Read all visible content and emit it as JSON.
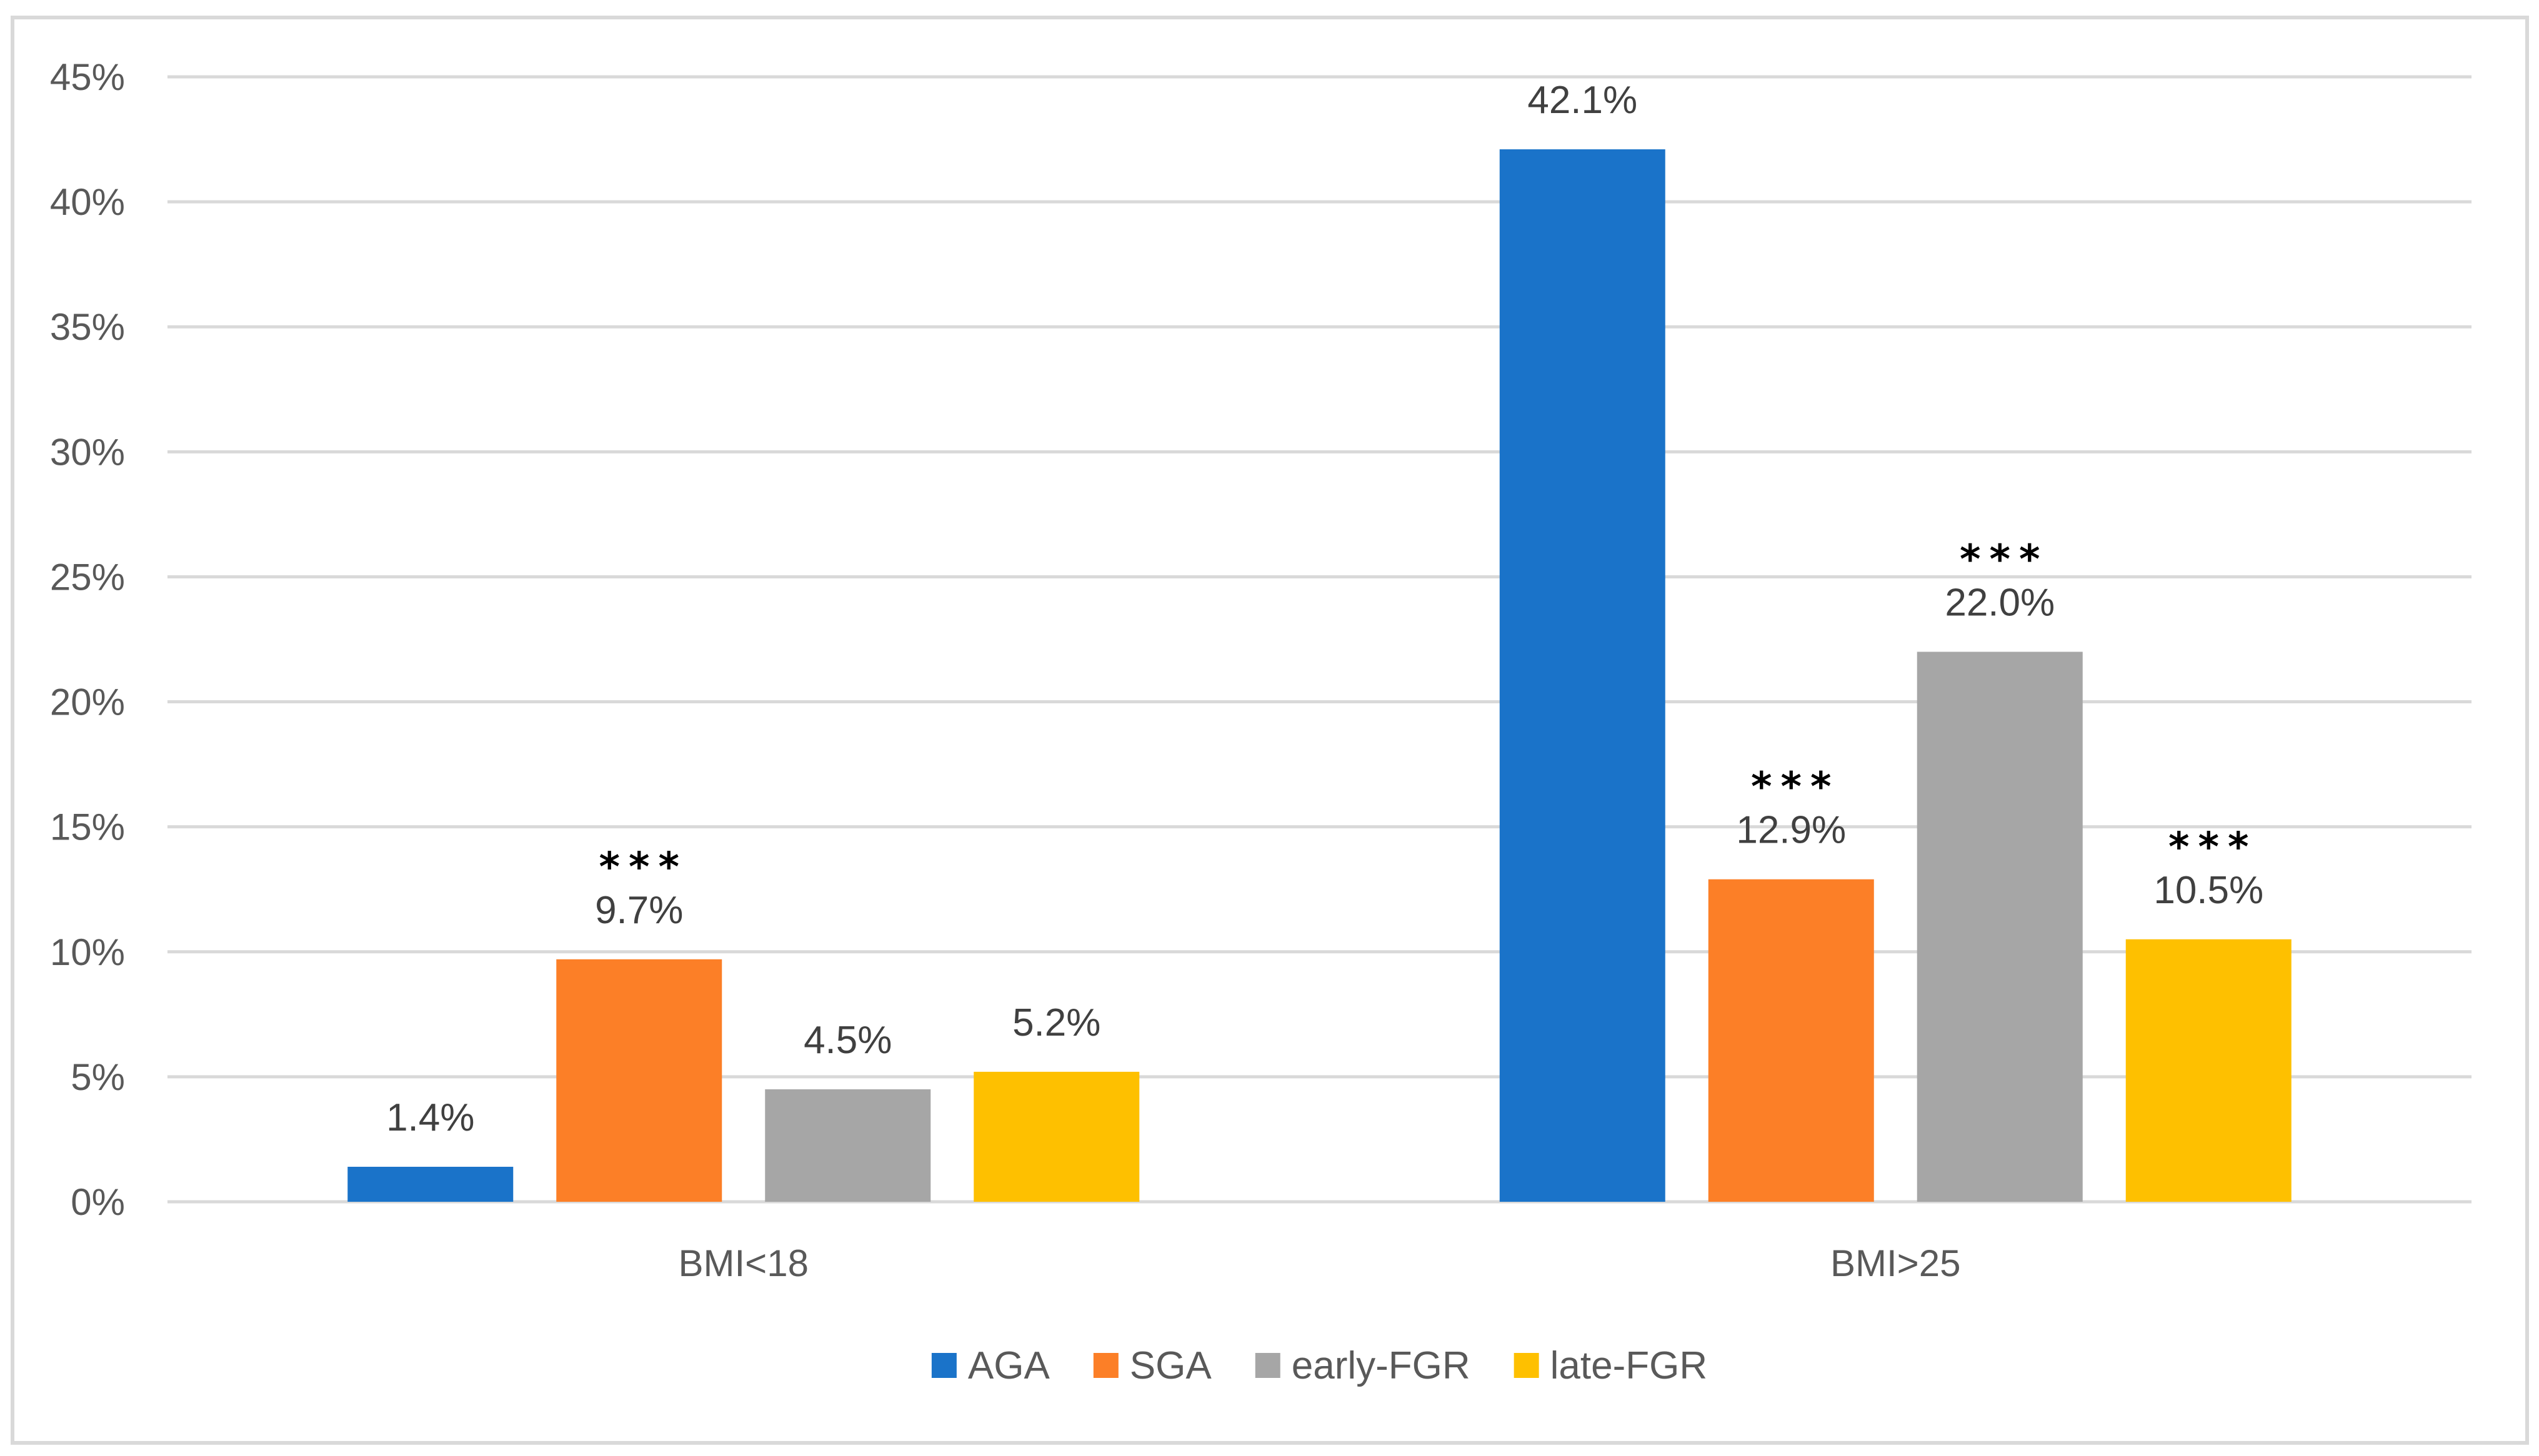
{
  "chart_data": {
    "type": "bar",
    "title": "",
    "xlabel": "",
    "ylabel": "",
    "categories": [
      "BMI<18",
      "BMI>25"
    ],
    "ylim": [
      0,
      45
    ],
    "y_ticks": [
      0,
      5,
      10,
      15,
      20,
      25,
      30,
      35,
      40,
      45
    ],
    "y_tick_labels": [
      "0%",
      "5%",
      "10%",
      "15%",
      "20%",
      "25%",
      "30%",
      "35%",
      "40%",
      "45%"
    ],
    "grid": true,
    "legend_position": "bottom",
    "series": [
      {
        "name": "AGA",
        "color": "#1a73c9",
        "values": [
          1.4,
          42.1
        ],
        "labels": [
          "1.4%",
          "42.1%"
        ],
        "significance": [
          "",
          ""
        ]
      },
      {
        "name": "SGA",
        "color": "#fc7f27",
        "values": [
          9.7,
          12.9
        ],
        "labels": [
          "9.7%",
          "12.9%"
        ],
        "significance": [
          "***",
          "***"
        ]
      },
      {
        "name": "early-FGR",
        "color": "#a6a6a6",
        "values": [
          4.5,
          22.0
        ],
        "labels": [
          "4.5%",
          "22.0%"
        ],
        "significance": [
          "",
          "***"
        ]
      },
      {
        "name": "late-FGR",
        "color": "#fec000",
        "values": [
          5.2,
          10.5
        ],
        "labels": [
          "5.2%",
          "10.5%"
        ],
        "significance": [
          "",
          "***"
        ]
      }
    ]
  }
}
